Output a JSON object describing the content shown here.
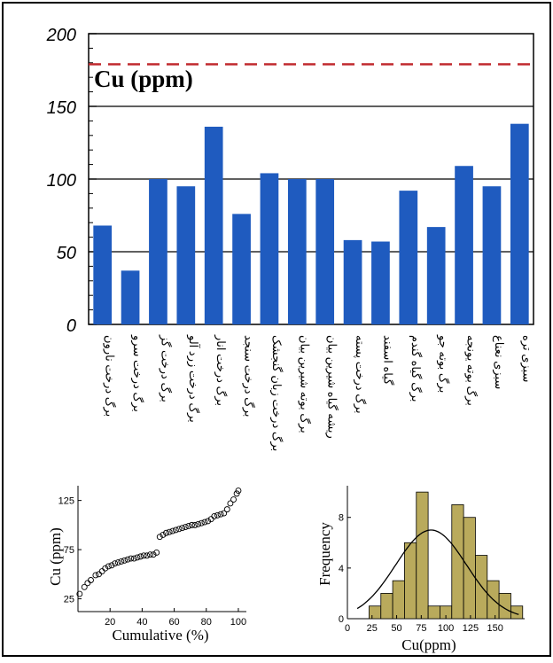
{
  "chart_data": [
    {
      "type": "bar",
      "title": "Cu (ppm)",
      "xlabel": "",
      "ylabel": "",
      "categories": [
        "برگ درخت نارون",
        "برگ درخت سرو",
        "برگ درخت گز",
        "برگ درخت زرد آلو",
        "برگ درخت انار",
        "برگ درخت سنجد",
        "برگ درخت زبان گنجشک",
        "برگ بوته شیرین بیان",
        "ریشه گیاه شیرین بیان",
        "برگ درخت پسته",
        "گیاه اسفند",
        "برگ گیاه گندم",
        "برگ بوته جو",
        "برگ بوته یونجه",
        "سبزی نعناع",
        "سبزی تره"
      ],
      "values": [
        68,
        37,
        100,
        95,
        136,
        76,
        104,
        100,
        100,
        58,
        57,
        92,
        67,
        109,
        95,
        138
      ],
      "ylim": [
        0,
        200
      ],
      "yticks": [
        "0",
        "50",
        "100",
        "150",
        "200"
      ],
      "reference_line": 179,
      "grid": "horizontal lines at 50, 100, 150",
      "colors": {
        "bar": "#1f5bbf",
        "reference_line": "#c0282d"
      }
    },
    {
      "type": "scatter",
      "xlabel": "Cumulative (%)",
      "ylabel": "Cu (ppm)",
      "xlim": [
        0,
        105
      ],
      "ylim": [
        12,
        140
      ],
      "xticks": [
        "20",
        "40",
        "60",
        "80",
        "100"
      ],
      "yticks": [
        "25",
        "75",
        "125"
      ],
      "x": [
        1,
        4,
        6,
        8,
        11,
        13,
        15,
        17,
        19,
        21,
        23,
        25,
        27,
        29,
        31,
        33,
        35,
        37,
        39,
        41,
        43,
        45,
        47,
        49,
        51,
        53,
        55,
        57,
        59,
        61,
        63,
        65,
        67,
        69,
        71,
        73,
        75,
        77,
        79,
        81,
        83,
        85,
        87,
        89,
        91,
        93,
        95,
        97,
        99,
        100
      ],
      "y": [
        30,
        37,
        41,
        44,
        49,
        50,
        53,
        56,
        58,
        59,
        61,
        62,
        63,
        64,
        65,
        66,
        66,
        67,
        68,
        69,
        69,
        70,
        70,
        72,
        88,
        90,
        92,
        93,
        94,
        95,
        96,
        97,
        98,
        99,
        100,
        100,
        101,
        102,
        103,
        104,
        106,
        109,
        110,
        111,
        112,
        116,
        122,
        126,
        132,
        135
      ]
    },
    {
      "type": "bar",
      "subtype": "histogram",
      "xlabel": "Cu(ppm)",
      "ylabel": "Frequency",
      "bin_width": 12,
      "bin_starts": [
        10,
        22,
        34,
        46,
        58,
        70,
        82,
        94,
        106,
        118,
        130,
        142,
        154,
        166
      ],
      "values": [
        0,
        1,
        2,
        3,
        6,
        10,
        1,
        1,
        9,
        8,
        5,
        3,
        2,
        1
      ],
      "xlim": [
        0,
        180
      ],
      "ylim": [
        0,
        10.5
      ],
      "xticks": [
        "0",
        "25",
        "50",
        "75",
        "100",
        "125",
        "150"
      ],
      "yticks": [
        "0",
        "4",
        "8"
      ],
      "normal_curve": {
        "mean": 85,
        "sd": 36,
        "peak": 7
      },
      "colors": {
        "bar": "#b9aa5c"
      }
    }
  ]
}
